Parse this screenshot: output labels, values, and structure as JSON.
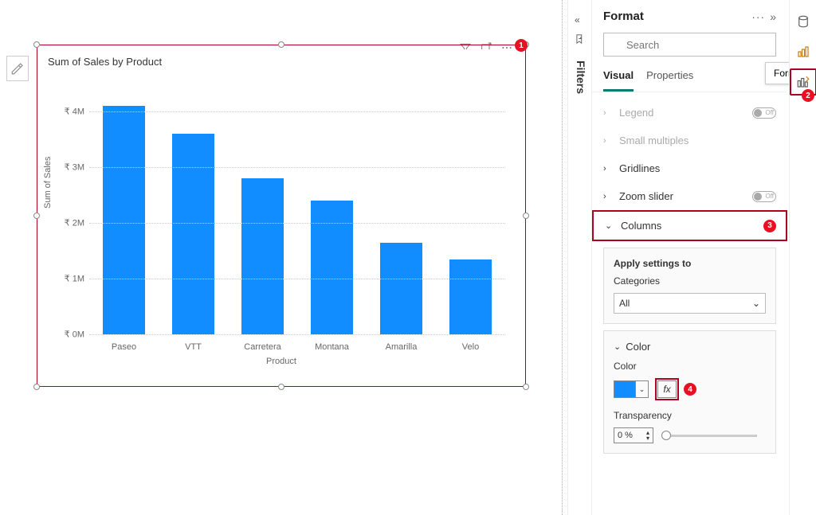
{
  "chart": {
    "title": "Sum of Sales by Product",
    "ylabel": "Sum of Sales",
    "xlabel": "Product",
    "categories": [
      "Paseo",
      "VTT",
      "Carretera",
      "Montana",
      "Amarilla",
      "Velo"
    ],
    "values": [
      4.1,
      3.6,
      2.8,
      2.4,
      1.65,
      1.35
    ],
    "ymax": 4.4,
    "ytick_labels": [
      "₹ 0M",
      "₹ 1M",
      "₹ 2M",
      "₹ 3M",
      "₹ 4M"
    ],
    "ytick_values": [
      0,
      1,
      2,
      3,
      4
    ],
    "bar_color": "#118DFF",
    "grid_color": "#cccccc",
    "title_fontsize": 13,
    "axis_fontsize": 11
  },
  "filters": {
    "label": "Filters"
  },
  "format_pane": {
    "title": "Format",
    "search_placeholder": "Search",
    "tab_visual": "Visual",
    "tab_properties": "Properties",
    "tooltip": "Format",
    "sections": {
      "legend": "Legend",
      "small_multiples": "Small multiples",
      "gridlines": "Gridlines",
      "zoom_slider": "Zoom slider",
      "columns": "Columns",
      "off": "Off"
    },
    "apply_card": {
      "title": "Apply settings to",
      "categories_label": "Categories",
      "value": "All"
    },
    "color_card": {
      "header": "Color",
      "color_label": "Color",
      "color_value": "#118DFF",
      "fx": "fx",
      "transparency_label": "Transparency",
      "transparency_value": "0 %"
    }
  },
  "callouts": {
    "c1": "1",
    "c2": "2",
    "c3": "3",
    "c4": "4"
  },
  "colors": {
    "highlight": "#b00020",
    "callout_bg": "#e81123",
    "teal": "#0b7b6b"
  }
}
